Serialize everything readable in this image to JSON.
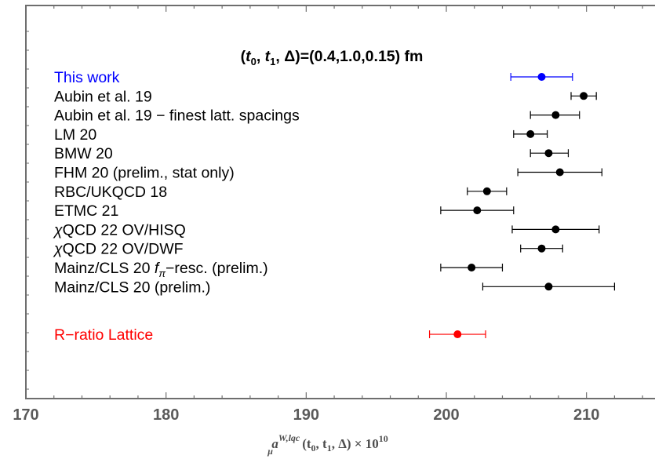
{
  "chart_data": {
    "type": "scatter",
    "subtype": "forest-plot-with-error-bars",
    "title": {
      "pre": "(",
      "t0": "t",
      "t0_sub": "0",
      "t1": "t",
      "t1_sub": "1",
      "post": ", Δ)=(0.4,1.0,0.15) fm"
    },
    "xlabel": {
      "a": "a",
      "sup": "W,lqc",
      "sub": "μ",
      "rest": "(t",
      "sub0": "0",
      "mid": ", t",
      "sub1": "1",
      "end": ", Δ) × 10",
      "exp": "10"
    },
    "xlim": [
      170,
      215
    ],
    "xticks": [
      "170",
      "180",
      "190",
      "200",
      "210"
    ],
    "xtick_values": [
      170,
      180,
      190,
      200,
      210
    ],
    "grid": false,
    "colors": {
      "this_work": "#0000ff",
      "default": "#000000",
      "r_ratio": "#ff0000",
      "frame": "#6e6e6e"
    },
    "entries": [
      {
        "label": "This work",
        "value": 206.8,
        "low": 204.6,
        "high": 209.0,
        "color": "#0000ff"
      },
      {
        "label": "Aubin et al. 19",
        "value": 209.8,
        "low": 208.9,
        "high": 210.7,
        "color": "#000000"
      },
      {
        "label": "Aubin et al. 19 − finest latt. spacings",
        "value": 207.8,
        "low": 206.0,
        "high": 209.5,
        "color": "#000000"
      },
      {
        "label": "LM 20",
        "value": 206.0,
        "low": 204.8,
        "high": 207.2,
        "color": "#000000"
      },
      {
        "label": "BMW 20",
        "value": 207.3,
        "low": 206.0,
        "high": 208.7,
        "color": "#000000"
      },
      {
        "label": "FHM 20 (prelim., stat only)",
        "value": 208.1,
        "low": 205.1,
        "high": 211.1,
        "color": "#000000"
      },
      {
        "label": "RBC/UKQCD 18",
        "value": 202.9,
        "low": 201.5,
        "high": 204.3,
        "color": "#000000"
      },
      {
        "label": "ETMC 21",
        "value": 202.2,
        "low": 199.6,
        "high": 204.8,
        "color": "#000000"
      },
      {
        "label": "χQCD 22 OV/HISQ",
        "value": 207.8,
        "low": 204.7,
        "high": 210.9,
        "color": "#000000",
        "chi": true,
        "rest": "QCD 22 OV/HISQ"
      },
      {
        "label": "χQCD 22 OV/DWF",
        "value": 206.8,
        "low": 205.3,
        "high": 208.3,
        "color": "#000000",
        "chi": true,
        "rest": "QCD 22 OV/DWF"
      },
      {
        "label": "Mainz/CLS 20 fπ−resc. (prelim.)",
        "value": 201.8,
        "low": 199.6,
        "high": 204.0,
        "color": "#000000",
        "fpi": true,
        "pre": "Mainz/CLS 20 ",
        "f": "f",
        "sub": "π",
        "post": "−resc. (prelim.)"
      },
      {
        "label": "Mainz/CLS 20 (prelim.)",
        "value": 207.3,
        "low": 202.6,
        "high": 212.0,
        "color": "#000000"
      },
      {
        "label": "R−ratio Lattice",
        "value": 200.8,
        "low": 198.8,
        "high": 202.8,
        "color": "#ff0000",
        "gap_before": true
      }
    ]
  }
}
